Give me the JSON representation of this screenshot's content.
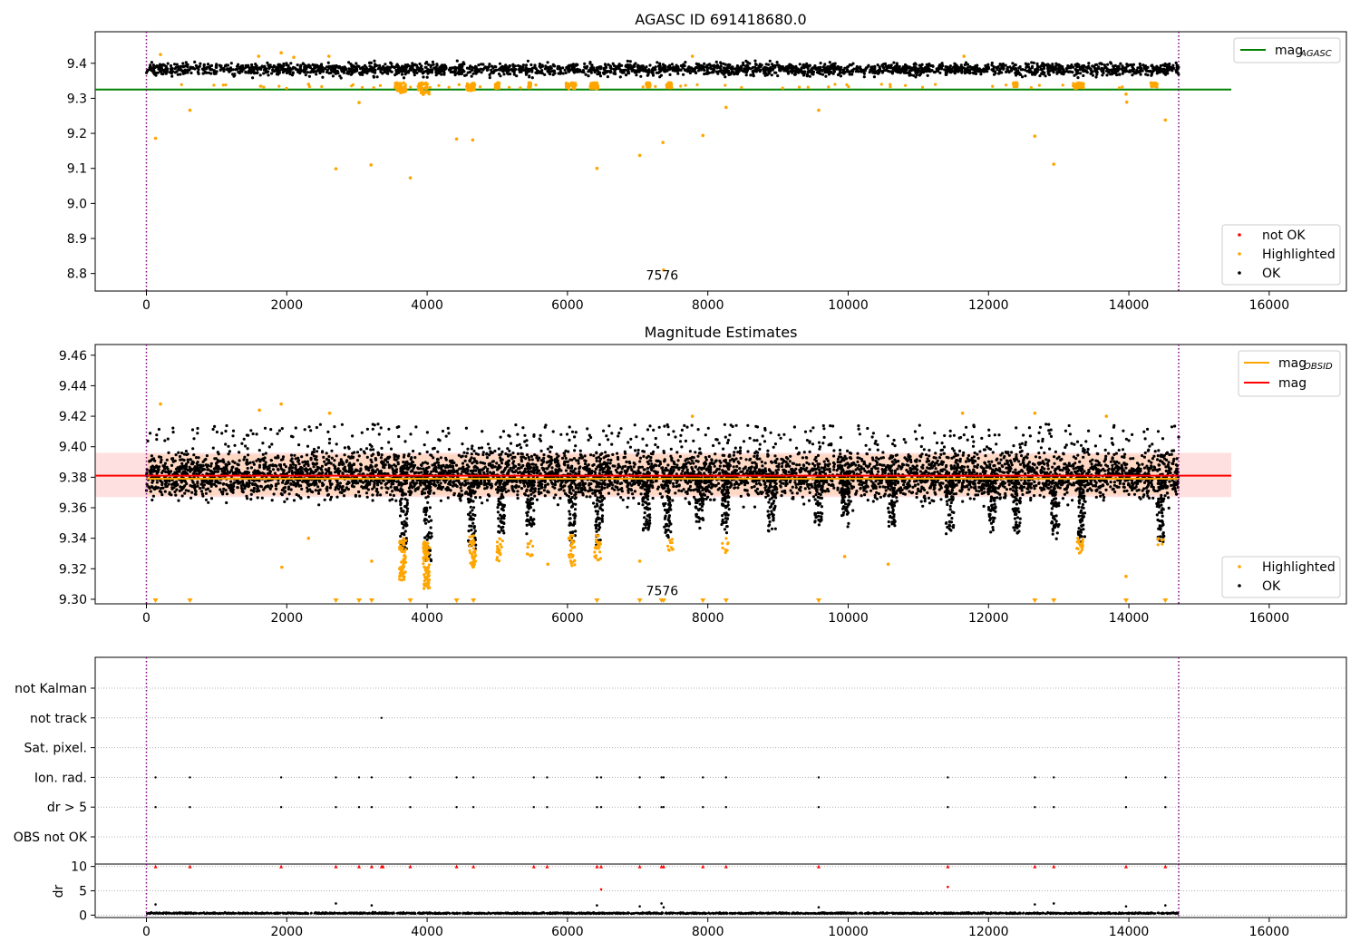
{
  "chart_data": [
    {
      "type": "scatter",
      "panel": "top",
      "title": "AGASC ID 691418680.0",
      "xlim": [
        -730,
        17100
      ],
      "ylim": [
        8.75,
        9.49
      ],
      "xticks": [
        0,
        2000,
        4000,
        6000,
        8000,
        10000,
        12000,
        14000,
        16000
      ],
      "yticks": [
        8.8,
        8.9,
        9.0,
        9.1,
        9.2,
        9.3,
        9.4
      ],
      "vlines": [
        0,
        14710
      ],
      "hline": {
        "label": "mag",
        "sub": "AGASC",
        "y": 9.325,
        "x_end": 15460,
        "color": "#008000"
      },
      "annotation": {
        "text": "7576",
        "x": 7350,
        "y": 8.79
      },
      "ok_band": {
        "center": 9.383,
        "spread": 0.012
      },
      "highlighted_points": [
        {
          "x": 130,
          "y": 9.186
        },
        {
          "x": 620,
          "y": 9.266
        },
        {
          "x": 200,
          "y": 9.425
        },
        {
          "x": 1920,
          "y": 9.43
        },
        {
          "x": 1600,
          "y": 9.42
        },
        {
          "x": 2100,
          "y": 9.417
        },
        {
          "x": 2600,
          "y": 9.42
        },
        {
          "x": 2700,
          "y": 9.099
        },
        {
          "x": 3030,
          "y": 9.288
        },
        {
          "x": 3200,
          "y": 9.11
        },
        {
          "x": 3760,
          "y": 9.073
        },
        {
          "x": 4420,
          "y": 9.184
        },
        {
          "x": 4650,
          "y": 9.181
        },
        {
          "x": 6420,
          "y": 9.1
        },
        {
          "x": 7030,
          "y": 9.137
        },
        {
          "x": 7360,
          "y": 9.174
        },
        {
          "x": 7370,
          "y": 8.81
        },
        {
          "x": 7930,
          "y": 9.194
        },
        {
          "x": 8260,
          "y": 9.274
        },
        {
          "x": 9580,
          "y": 9.266
        },
        {
          "x": 12660,
          "y": 9.192
        },
        {
          "x": 12930,
          "y": 9.112
        },
        {
          "x": 13970,
          "y": 9.289
        },
        {
          "x": 13960,
          "y": 9.312
        },
        {
          "x": 14520,
          "y": 9.238
        },
        {
          "x": 2310,
          "y": 9.34
        },
        {
          "x": 7780,
          "y": 9.42
        },
        {
          "x": 11650,
          "y": 9.42
        }
      ],
      "highlighted_clusters": [
        {
          "x": 3620,
          "width": 160,
          "ymin": 9.315,
          "ymax": 9.345
        },
        {
          "x": 3960,
          "width": 180,
          "ymin": 9.31,
          "ymax": 9.345
        },
        {
          "x": 4620,
          "width": 120,
          "ymin": 9.322,
          "ymax": 9.345
        },
        {
          "x": 5000,
          "width": 60,
          "ymin": 9.328,
          "ymax": 9.345
        },
        {
          "x": 5460,
          "width": 40,
          "ymin": 9.33,
          "ymax": 9.345
        },
        {
          "x": 6050,
          "width": 140,
          "ymin": 9.325,
          "ymax": 9.345
        },
        {
          "x": 6380,
          "width": 120,
          "ymin": 9.326,
          "ymax": 9.345
        },
        {
          "x": 7150,
          "width": 60,
          "ymin": 9.332,
          "ymax": 9.345
        },
        {
          "x": 7450,
          "width": 80,
          "ymin": 9.33,
          "ymax": 9.345
        },
        {
          "x": 12380,
          "width": 60,
          "ymin": 9.333,
          "ymax": 9.345
        },
        {
          "x": 13280,
          "width": 150,
          "ymin": 9.328,
          "ymax": 9.345
        },
        {
          "x": 14360,
          "width": 100,
          "ymin": 9.332,
          "ymax": 9.345
        }
      ],
      "legend_upper": [
        {
          "label": "mag",
          "sub": "AGASC",
          "color": "#008000",
          "kind": "line"
        }
      ],
      "legend_lower": [
        {
          "label": "not OK",
          "color": "#ff0000",
          "kind": "dot"
        },
        {
          "label": "Highlighted",
          "color": "#ffa500",
          "kind": "dot"
        },
        {
          "label": "OK",
          "color": "#000000",
          "kind": "dot"
        }
      ]
    },
    {
      "type": "scatter",
      "panel": "middle",
      "title": "Magnitude Estimates",
      "xlim": [
        -730,
        17100
      ],
      "ylim": [
        9.297,
        9.467
      ],
      "xticks": [
        0,
        2000,
        4000,
        6000,
        8000,
        10000,
        12000,
        14000,
        16000
      ],
      "yticks": [
        9.3,
        9.32,
        9.34,
        9.36,
        9.38,
        9.4,
        9.42,
        9.44,
        9.46
      ],
      "vlines": [
        0,
        14710
      ],
      "mag_line": {
        "label": "mag",
        "y": 9.381,
        "x_start": -730,
        "x_end": 15460,
        "color": "#ff0000"
      },
      "mag_obsid_line": {
        "label": "mag",
        "sub": "OBSID",
        "y": 9.379,
        "x_start": 0,
        "x_end": 14710,
        "color": "#ffa500"
      },
      "band": {
        "ymin": 9.367,
        "ymax": 9.396,
        "x_start": -730,
        "x_end": 15460
      },
      "annotation": {
        "text": "7576",
        "x": 7350,
        "y": 9.301
      },
      "ok_band": {
        "center": 9.381,
        "spread": 0.01
      },
      "dips": [
        {
          "x": 3670,
          "y": 9.335
        },
        {
          "x": 4010,
          "y": 9.325
        },
        {
          "x": 4640,
          "y": 9.335
        },
        {
          "x": 5060,
          "y": 9.345
        },
        {
          "x": 5470,
          "y": 9.348
        },
        {
          "x": 6070,
          "y": 9.338
        },
        {
          "x": 6450,
          "y": 9.335
        },
        {
          "x": 7120,
          "y": 9.345
        },
        {
          "x": 7420,
          "y": 9.342
        },
        {
          "x": 7880,
          "y": 9.35
        },
        {
          "x": 8250,
          "y": 9.345
        },
        {
          "x": 8910,
          "y": 9.345
        },
        {
          "x": 9580,
          "y": 9.35
        },
        {
          "x": 9960,
          "y": 9.35
        },
        {
          "x": 10620,
          "y": 9.348
        },
        {
          "x": 11450,
          "y": 9.345
        },
        {
          "x": 12050,
          "y": 9.345
        },
        {
          "x": 12400,
          "y": 9.345
        },
        {
          "x": 12950,
          "y": 9.342
        },
        {
          "x": 13330,
          "y": 9.338
        },
        {
          "x": 14450,
          "y": 9.34
        }
      ],
      "highlighted_points": [
        {
          "x": 200,
          "y": 9.428
        },
        {
          "x": 1920,
          "y": 9.428
        },
        {
          "x": 1610,
          "y": 9.424
        },
        {
          "x": 1930,
          "y": 9.321
        },
        {
          "x": 2310,
          "y": 9.34
        },
        {
          "x": 2610,
          "y": 9.422
        },
        {
          "x": 3210,
          "y": 9.325
        },
        {
          "x": 7780,
          "y": 9.42
        },
        {
          "x": 11630,
          "y": 9.422
        },
        {
          "x": 12660,
          "y": 9.422
        },
        {
          "x": 13680,
          "y": 9.42
        },
        {
          "x": 13960,
          "y": 9.315
        },
        {
          "x": 10570,
          "y": 9.323
        },
        {
          "x": 5720,
          "y": 9.323
        },
        {
          "x": 7030,
          "y": 9.325
        },
        {
          "x": 9950,
          "y": 9.328
        }
      ],
      "triangles_x": [
        130,
        620,
        2700,
        3030,
        3210,
        3760,
        4420,
        4660,
        6420,
        7030,
        7340,
        7370,
        7930,
        8260,
        9580,
        12660,
        12930,
        13960,
        14520
      ],
      "legend_upper": [
        {
          "label": "mag",
          "sub": "OBSID",
          "color": "#ffa500",
          "kind": "line"
        },
        {
          "label": "mag",
          "sub": "",
          "color": "#ff0000",
          "kind": "line"
        }
      ],
      "legend_lower": [
        {
          "label": "Highlighted",
          "color": "#ffa500",
          "kind": "dot"
        },
        {
          "label": "OK",
          "color": "#000000",
          "kind": "dot"
        }
      ]
    },
    {
      "type": "scatter",
      "panel": "flags",
      "xlim": [
        -730,
        17100
      ],
      "rows": [
        "not Kalman",
        "not track",
        "Sat. pixel.",
        "Ion. rad.",
        "dr > 5",
        "OBS not OK"
      ],
      "vlines": [
        0,
        14710
      ],
      "flag_points": [
        {
          "row": "not track",
          "x": 3350
        },
        {
          "row": "Ion. rad.",
          "x": 130
        },
        {
          "row": "Ion. rad.",
          "x": 620
        },
        {
          "row": "Ion. rad.",
          "x": 1920
        },
        {
          "row": "Ion. rad.",
          "x": 2700
        },
        {
          "row": "Ion. rad.",
          "x": 3030
        },
        {
          "row": "Ion. rad.",
          "x": 3210
        },
        {
          "row": "Ion. rad.",
          "x": 3760
        },
        {
          "row": "Ion. rad.",
          "x": 4420
        },
        {
          "row": "Ion. rad.",
          "x": 4660
        },
        {
          "row": "Ion. rad.",
          "x": 5520
        },
        {
          "row": "Ion. rad.",
          "x": 5710
        },
        {
          "row": "Ion. rad.",
          "x": 6420
        },
        {
          "row": "Ion. rad.",
          "x": 6480
        },
        {
          "row": "Ion. rad.",
          "x": 7030
        },
        {
          "row": "Ion. rad.",
          "x": 7340
        },
        {
          "row": "Ion. rad.",
          "x": 7370
        },
        {
          "row": "Ion. rad.",
          "x": 7930
        },
        {
          "row": "Ion. rad.",
          "x": 8260
        },
        {
          "row": "Ion. rad.",
          "x": 9580
        },
        {
          "row": "Ion. rad.",
          "x": 11420
        },
        {
          "row": "Ion. rad.",
          "x": 12660
        },
        {
          "row": "Ion. rad.",
          "x": 12930
        },
        {
          "row": "Ion. rad.",
          "x": 13960
        },
        {
          "row": "Ion. rad.",
          "x": 14520
        },
        {
          "row": "dr > 5",
          "x": 130
        },
        {
          "row": "dr > 5",
          "x": 620
        },
        {
          "row": "dr > 5",
          "x": 1920
        },
        {
          "row": "dr > 5",
          "x": 2700
        },
        {
          "row": "dr > 5",
          "x": 3030
        },
        {
          "row": "dr > 5",
          "x": 3210
        },
        {
          "row": "dr > 5",
          "x": 3760
        },
        {
          "row": "dr > 5",
          "x": 4420
        },
        {
          "row": "dr > 5",
          "x": 4660
        },
        {
          "row": "dr > 5",
          "x": 5520
        },
        {
          "row": "dr > 5",
          "x": 5710
        },
        {
          "row": "dr > 5",
          "x": 6420
        },
        {
          "row": "dr > 5",
          "x": 6480
        },
        {
          "row": "dr > 5",
          "x": 7030
        },
        {
          "row": "dr > 5",
          "x": 7340
        },
        {
          "row": "dr > 5",
          "x": 7370
        },
        {
          "row": "dr > 5",
          "x": 7930
        },
        {
          "row": "dr > 5",
          "x": 8260
        },
        {
          "row": "dr > 5",
          "x": 9580
        },
        {
          "row": "dr > 5",
          "x": 11420
        },
        {
          "row": "dr > 5",
          "x": 12660
        },
        {
          "row": "dr > 5",
          "x": 12930
        },
        {
          "row": "dr > 5",
          "x": 13960
        },
        {
          "row": "dr > 5",
          "x": 14520
        }
      ]
    },
    {
      "type": "scatter",
      "panel": "dr",
      "ylabel": "dr",
      "xlim": [
        -730,
        17100
      ],
      "ylim": [
        -0.5,
        10.5
      ],
      "xticks": [
        0,
        2000,
        4000,
        6000,
        8000,
        10000,
        12000,
        14000,
        16000
      ],
      "yticks": [
        0,
        5,
        10
      ],
      "vlines": [
        0,
        14710
      ],
      "clipped_x": [
        130,
        620,
        1920,
        2700,
        3030,
        3210,
        3350,
        3370,
        3760,
        4420,
        4660,
        5520,
        5710,
        6420,
        6480,
        7030,
        7340,
        7370,
        7930,
        8260,
        9580,
        11420,
        12660,
        12930,
        13960,
        14520
      ],
      "outliers": [
        {
          "x": 130,
          "y": 2.2
        },
        {
          "x": 2700,
          "y": 2.4
        },
        {
          "x": 3210,
          "y": 2.0
        },
        {
          "x": 6420,
          "y": 2.0
        },
        {
          "x": 6480,
          "y": 5.3
        },
        {
          "x": 7030,
          "y": 1.8
        },
        {
          "x": 7340,
          "y": 2.4
        },
        {
          "x": 7370,
          "y": 1.6
        },
        {
          "x": 9580,
          "y": 1.6
        },
        {
          "x": 11420,
          "y": 5.8
        },
        {
          "x": 12660,
          "y": 2.2
        },
        {
          "x": 12930,
          "y": 2.4
        },
        {
          "x": 13960,
          "y": 1.8
        },
        {
          "x": 14520,
          "y": 2.0
        }
      ]
    }
  ]
}
